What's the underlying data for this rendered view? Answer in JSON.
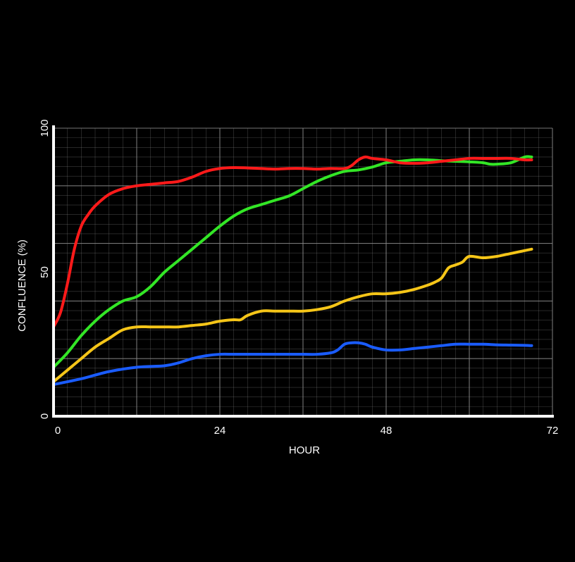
{
  "chart_data": {
    "type": "line",
    "title": "",
    "xlabel": "HOUR",
    "ylabel": "CONFLUENCE (%)",
    "xlim": [
      0,
      72
    ],
    "ylim": [
      0,
      100
    ],
    "xticks": [
      0,
      24,
      48,
      72
    ],
    "yticks": [
      0,
      50,
      100
    ],
    "grid": true,
    "background": "#000000",
    "axis_color": "#ffffff",
    "grid_color": "#8a8a8a",
    "series": [
      {
        "color": "#ff1a1a",
        "x": [
          0,
          1,
          2,
          3,
          4,
          5,
          6,
          8,
          10,
          12,
          14,
          16,
          18,
          20,
          22,
          24,
          26,
          28,
          30,
          32,
          34,
          36,
          38,
          40,
          42,
          43,
          44,
          45,
          46,
          48,
          50,
          52,
          54,
          56,
          58,
          60,
          62,
          64,
          66,
          68,
          69
        ],
        "y": [
          31,
          36,
          46,
          58,
          66,
          70,
          73,
          77,
          79,
          80,
          80.5,
          81,
          81.5,
          83,
          85,
          86,
          86.3,
          86.2,
          86,
          85.8,
          86,
          86,
          85.8,
          86,
          86,
          87,
          89,
          90,
          89.5,
          89,
          88,
          87.8,
          88,
          88.5,
          89,
          89.5,
          89.5,
          89.5,
          89.5,
          89,
          89
        ]
      },
      {
        "color": "#33e626",
        "x": [
          0,
          2,
          4,
          6,
          8,
          10,
          12,
          14,
          16,
          18,
          20,
          22,
          24,
          26,
          28,
          30,
          32,
          34,
          36,
          38,
          40,
          42,
          44,
          46,
          48,
          50,
          52,
          54,
          56,
          58,
          60,
          62,
          63,
          64,
          66,
          68,
          69
        ],
        "y": [
          17,
          22,
          28,
          33,
          37,
          40,
          41.5,
          45,
          50,
          54,
          58,
          62,
          66,
          69.5,
          72,
          73.5,
          75,
          76.5,
          79,
          81.5,
          83.5,
          85,
          85.5,
          86.5,
          88,
          88.5,
          89,
          89,
          88.7,
          88.5,
          88.3,
          88,
          87.5,
          87.5,
          88,
          90,
          90
        ]
      },
      {
        "color": "#f5c518",
        "x": [
          0,
          2,
          4,
          6,
          8,
          10,
          12,
          14,
          16,
          18,
          20,
          22,
          24,
          26,
          27,
          28,
          30,
          32,
          34,
          36,
          38,
          40,
          42,
          44,
          46,
          48,
          50,
          52,
          54,
          55,
          56,
          57,
          58,
          59,
          60,
          62,
          64,
          66,
          68,
          69
        ],
        "y": [
          12,
          16,
          20,
          24,
          27,
          30,
          31,
          31,
          31,
          31,
          31.5,
          32,
          33,
          33.5,
          33.5,
          35,
          36.5,
          36.5,
          36.5,
          36.5,
          37,
          38,
          40,
          41.5,
          42.5,
          42.5,
          43,
          44,
          45.5,
          46.5,
          48,
          51.5,
          52.5,
          53.5,
          55.5,
          55,
          55.5,
          56.5,
          57.5,
          58
        ]
      },
      {
        "color": "#1a5cff",
        "x": [
          0,
          4,
          8,
          12,
          16,
          18,
          20,
          22,
          24,
          26,
          28,
          30,
          32,
          34,
          36,
          38,
          40,
          41,
          42,
          43,
          44,
          45,
          46,
          48,
          50,
          52,
          54,
          56,
          58,
          60,
          62,
          64,
          66,
          68,
          69
        ],
        "y": [
          11,
          13,
          15.5,
          17,
          17.5,
          18.5,
          20,
          21,
          21.5,
          21.5,
          21.5,
          21.5,
          21.5,
          21.5,
          21.5,
          21.5,
          22,
          23,
          25,
          25.5,
          25.5,
          25,
          24,
          23,
          23,
          23.5,
          24,
          24.5,
          25,
          25,
          25,
          24.8,
          24.7,
          24.6,
          24.5
        ]
      }
    ]
  }
}
